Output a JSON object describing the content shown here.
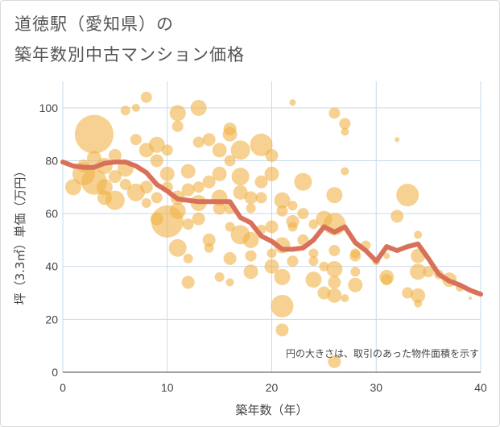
{
  "title_line1": "道徳駅（愛知県）の",
  "title_line2": "築年数別中古マンション価格",
  "chart_data": {
    "type": "scatter",
    "xlabel": "築年数（年）",
    "ylabel": "坪（3.3㎡）単価（万円）",
    "xlim": [
      0,
      40
    ],
    "ylim": [
      0,
      110
    ],
    "xticks": [
      "0",
      "10",
      "20",
      "30",
      "40"
    ],
    "yticks": [
      "0",
      "20",
      "40",
      "60",
      "80",
      "100"
    ],
    "xtick_values": [
      0,
      10,
      20,
      30,
      40
    ],
    "ytick_values": [
      0,
      20,
      40,
      60,
      80,
      100
    ],
    "grid": true,
    "annotation": "円の大きさは、取引のあった物件面積を示す",
    "bubble_color": "#f0b247",
    "line_color": "#d9705a",
    "points": [
      [
        3,
        90,
        24
      ],
      [
        1,
        70,
        10
      ],
      [
        2,
        75,
        14
      ],
      [
        3,
        72,
        16
      ],
      [
        4,
        78,
        10
      ],
      [
        5,
        82,
        8
      ],
      [
        4,
        66,
        9
      ],
      [
        5,
        65,
        12
      ],
      [
        6,
        99,
        6
      ],
      [
        7,
        100,
        5
      ],
      [
        8,
        104,
        7
      ],
      [
        7,
        88,
        7
      ],
      [
        8,
        84,
        9
      ],
      [
        9,
        86,
        10
      ],
      [
        9,
        80,
        8
      ],
      [
        10,
        75,
        9
      ],
      [
        7,
        68,
        11
      ],
      [
        8,
        70,
        8
      ],
      [
        9,
        66,
        7
      ],
      [
        10,
        57,
        20
      ],
      [
        11,
        61,
        10
      ],
      [
        11,
        47,
        11
      ],
      [
        12,
        43,
        6
      ],
      [
        11,
        98,
        10
      ],
      [
        11,
        93,
        7
      ],
      [
        13,
        100,
        10
      ],
      [
        12,
        76,
        9
      ],
      [
        12,
        69,
        8
      ],
      [
        13,
        64,
        10
      ],
      [
        13,
        58,
        8
      ],
      [
        12,
        34,
        8
      ],
      [
        14,
        50,
        8
      ],
      [
        13,
        87,
        7
      ],
      [
        14,
        88,
        8
      ],
      [
        15,
        84,
        9
      ],
      [
        15,
        75,
        9
      ],
      [
        15,
        66,
        10
      ],
      [
        15,
        62,
        8
      ],
      [
        16,
        90,
        9
      ],
      [
        16,
        92,
        8
      ],
      [
        17,
        84,
        12
      ],
      [
        17,
        74,
        11
      ],
      [
        16,
        62,
        7
      ],
      [
        16,
        55,
        6
      ],
      [
        17,
        52,
        12
      ],
      [
        16,
        43,
        8
      ],
      [
        15,
        36,
        6
      ],
      [
        18,
        66,
        8
      ],
      [
        18,
        62,
        6
      ],
      [
        18,
        50,
        10
      ],
      [
        18,
        38,
        9
      ],
      [
        19,
        86,
        14
      ],
      [
        20,
        82,
        8
      ],
      [
        20,
        75,
        9
      ],
      [
        21,
        65,
        10
      ],
      [
        21,
        61,
        7
      ],
      [
        20,
        55,
        8
      ],
      [
        20,
        45,
        6
      ],
      [
        20,
        40,
        9
      ],
      [
        21,
        36,
        10
      ],
      [
        21,
        25,
        14
      ],
      [
        21,
        16,
        8
      ],
      [
        22,
        102,
        4
      ],
      [
        23,
        72,
        11
      ],
      [
        22,
        55,
        6
      ],
      [
        23,
        50,
        7
      ],
      [
        22,
        42,
        7
      ],
      [
        24,
        35,
        10
      ],
      [
        25,
        30,
        8
      ],
      [
        25,
        58,
        10
      ],
      [
        26,
        56,
        14
      ],
      [
        26,
        67,
        10
      ],
      [
        26,
        39,
        10
      ],
      [
        26,
        34,
        8
      ],
      [
        26,
        29,
        9
      ],
      [
        27,
        94,
        7
      ],
      [
        27,
        91,
        5
      ],
      [
        27,
        76,
        5
      ],
      [
        28,
        45,
        6
      ],
      [
        28,
        33,
        9
      ],
      [
        26,
        4,
        8
      ],
      [
        26,
        98,
        7
      ],
      [
        29,
        48,
        6
      ],
      [
        31,
        36,
        9
      ],
      [
        31,
        35,
        7
      ],
      [
        32,
        59,
        8
      ],
      [
        32,
        88,
        3
      ],
      [
        33,
        67,
        14
      ],
      [
        34,
        52,
        5
      ],
      [
        34,
        44,
        9
      ],
      [
        34,
        38,
        10
      ],
      [
        34,
        29,
        9
      ],
      [
        34,
        26,
        5
      ],
      [
        35,
        38,
        7
      ],
      [
        36,
        37,
        6
      ],
      [
        37,
        35,
        9
      ],
      [
        38,
        32,
        5
      ],
      [
        39,
        28,
        2
      ],
      [
        24,
        45,
        6
      ],
      [
        22,
        63,
        6
      ],
      [
        19,
        54,
        6
      ],
      [
        14,
        72,
        8
      ],
      [
        13,
        70,
        7
      ],
      [
        14,
        47,
        6
      ],
      [
        6,
        71,
        7
      ],
      [
        8,
        64,
        6
      ],
      [
        10,
        70,
        7
      ],
      [
        17,
        68,
        9
      ],
      [
        19,
        66,
        7
      ],
      [
        23,
        60,
        7
      ],
      [
        25,
        40,
        6
      ],
      [
        28,
        44,
        7
      ],
      [
        33,
        30,
        7
      ],
      [
        27,
        28,
        5
      ],
      [
        30,
        42,
        5
      ],
      [
        31,
        44,
        4
      ],
      [
        3,
        81,
        9
      ],
      [
        2,
        78,
        8
      ],
      [
        5,
        74,
        8
      ],
      [
        6,
        77,
        10
      ],
      [
        4,
        70,
        10
      ],
      [
        16,
        80,
        7
      ],
      [
        19,
        72,
        8
      ],
      [
        21,
        48,
        10
      ],
      [
        22,
        57,
        8
      ],
      [
        24,
        42,
        6
      ],
      [
        18,
        44,
        7
      ],
      [
        16,
        34,
        5
      ],
      [
        12,
        56,
        7
      ],
      [
        10,
        84,
        7
      ],
      [
        9,
        58,
        8
      ],
      [
        11,
        66,
        9
      ],
      [
        24,
        56,
        6
      ],
      [
        28,
        38,
        6
      ],
      [
        26,
        46,
        7
      ]
    ],
    "trend_x": [
      0,
      1,
      2,
      3,
      4,
      5,
      6,
      7,
      8,
      9,
      10,
      11,
      12,
      13,
      14,
      15,
      16,
      17,
      18,
      19,
      20,
      21,
      22,
      23,
      24,
      25,
      26,
      27,
      28,
      29,
      30,
      31,
      32,
      33,
      34,
      35,
      36,
      37,
      38,
      39,
      40
    ],
    "trend_y": [
      79.5,
      78,
      77.5,
      77.5,
      79,
      79.5,
      79.5,
      78,
      75.5,
      71,
      68.5,
      65.5,
      65,
      64.5,
      64.5,
      64.5,
      64.5,
      58.5,
      56.5,
      51.5,
      49.5,
      46.5,
      46.5,
      47,
      50,
      55,
      53,
      55,
      49,
      46,
      42,
      47.5,
      46,
      47.5,
      48.5,
      43,
      37,
      34.5,
      33,
      31,
      29.5
    ]
  }
}
